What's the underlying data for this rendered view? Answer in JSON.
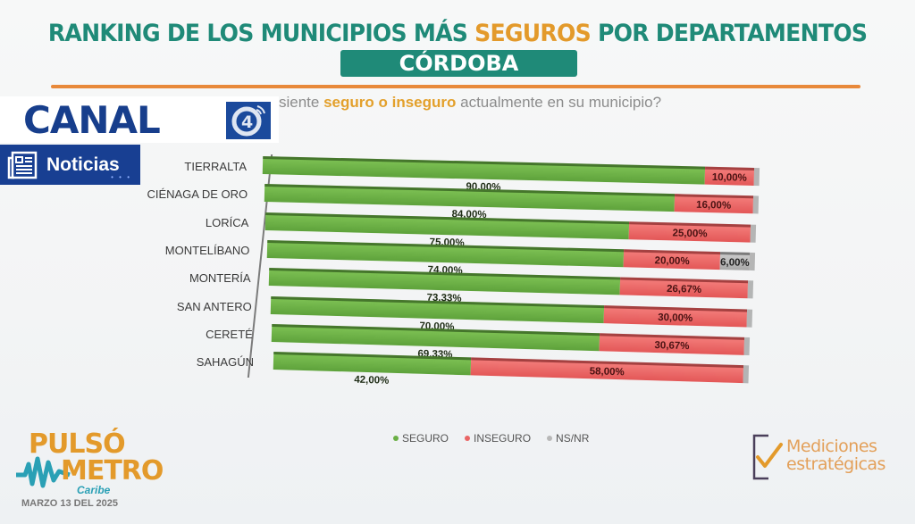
{
  "header": {
    "title_part1": "RANKING DE LOS MUNICIPIOS MÁS ",
    "title_highlight": "SEGUROS",
    "title_part2": " POR DEPARTAMENTOS",
    "department": "CÓRDOBA",
    "question_part1": "siente ",
    "question_highlight": "seguro o inseguro",
    "question_part2": " actualmente en su municipio?"
  },
  "overlay": {
    "brand": "CANAL",
    "brand_number": "4",
    "section": "Noticias",
    "dots": "• • •"
  },
  "colors": {
    "seguro": "#6aaf45",
    "inseguro": "#e96565",
    "nsnr": "#b8b8b8",
    "title": "#1f8a78",
    "accent": "#e39a2b",
    "brand": "#183f92"
  },
  "chart_data": {
    "type": "bar",
    "orientation": "horizontal-stacked-3d",
    "title": "RANKING DE LOS MUNICIPIOS MÁS SEGUROS POR DEPARTAMENTOS - CÓRDOBA",
    "categories": [
      "TIERRALTA",
      "CIÉNAGA DE ORO",
      "LORÍCA",
      "MONTELÍBANO",
      "MONTERÍA",
      "SAN ANTERO",
      "CERETÉ",
      "SAHAGÚN"
    ],
    "series": [
      {
        "name": "SEGURO",
        "values": [
          90.0,
          84.0,
          75.0,
          74.0,
          73.33,
          70.0,
          69.33,
          42.0
        ],
        "labels": [
          "90,00%",
          "84,00%",
          "75,00%",
          "74,00%",
          "73,33%",
          "70,00%",
          "69,33%",
          "42,00%"
        ]
      },
      {
        "name": "INSEGURO",
        "values": [
          10.0,
          16.0,
          25.0,
          20.0,
          26.67,
          30.0,
          30.67,
          58.0
        ],
        "labels": [
          "10,00%",
          "16,00%",
          "25,00%",
          "20,00%",
          "26,67%",
          "30,00%",
          "30,67%",
          "58,00%"
        ]
      },
      {
        "name": "NS/NR",
        "values": [
          0,
          0,
          0,
          6.0,
          0,
          0,
          0,
          0
        ],
        "labels": [
          "",
          "",
          "",
          "6,00%",
          "",
          "",
          "",
          ""
        ]
      }
    ],
    "xlim": [
      0,
      100
    ],
    "legend": [
      "SEGURO",
      "INSEGURO",
      "NS/NR"
    ],
    "legend_position": "bottom",
    "grid": false
  },
  "footer": {
    "pulso_line1": "PULSÓ",
    "pulso_line2": "METRO",
    "pulso_line3": "Caribe",
    "date": "MARZO 13 DEL 2025",
    "medic_line1": "Mediciones",
    "medic_line2": "estratégicas"
  }
}
